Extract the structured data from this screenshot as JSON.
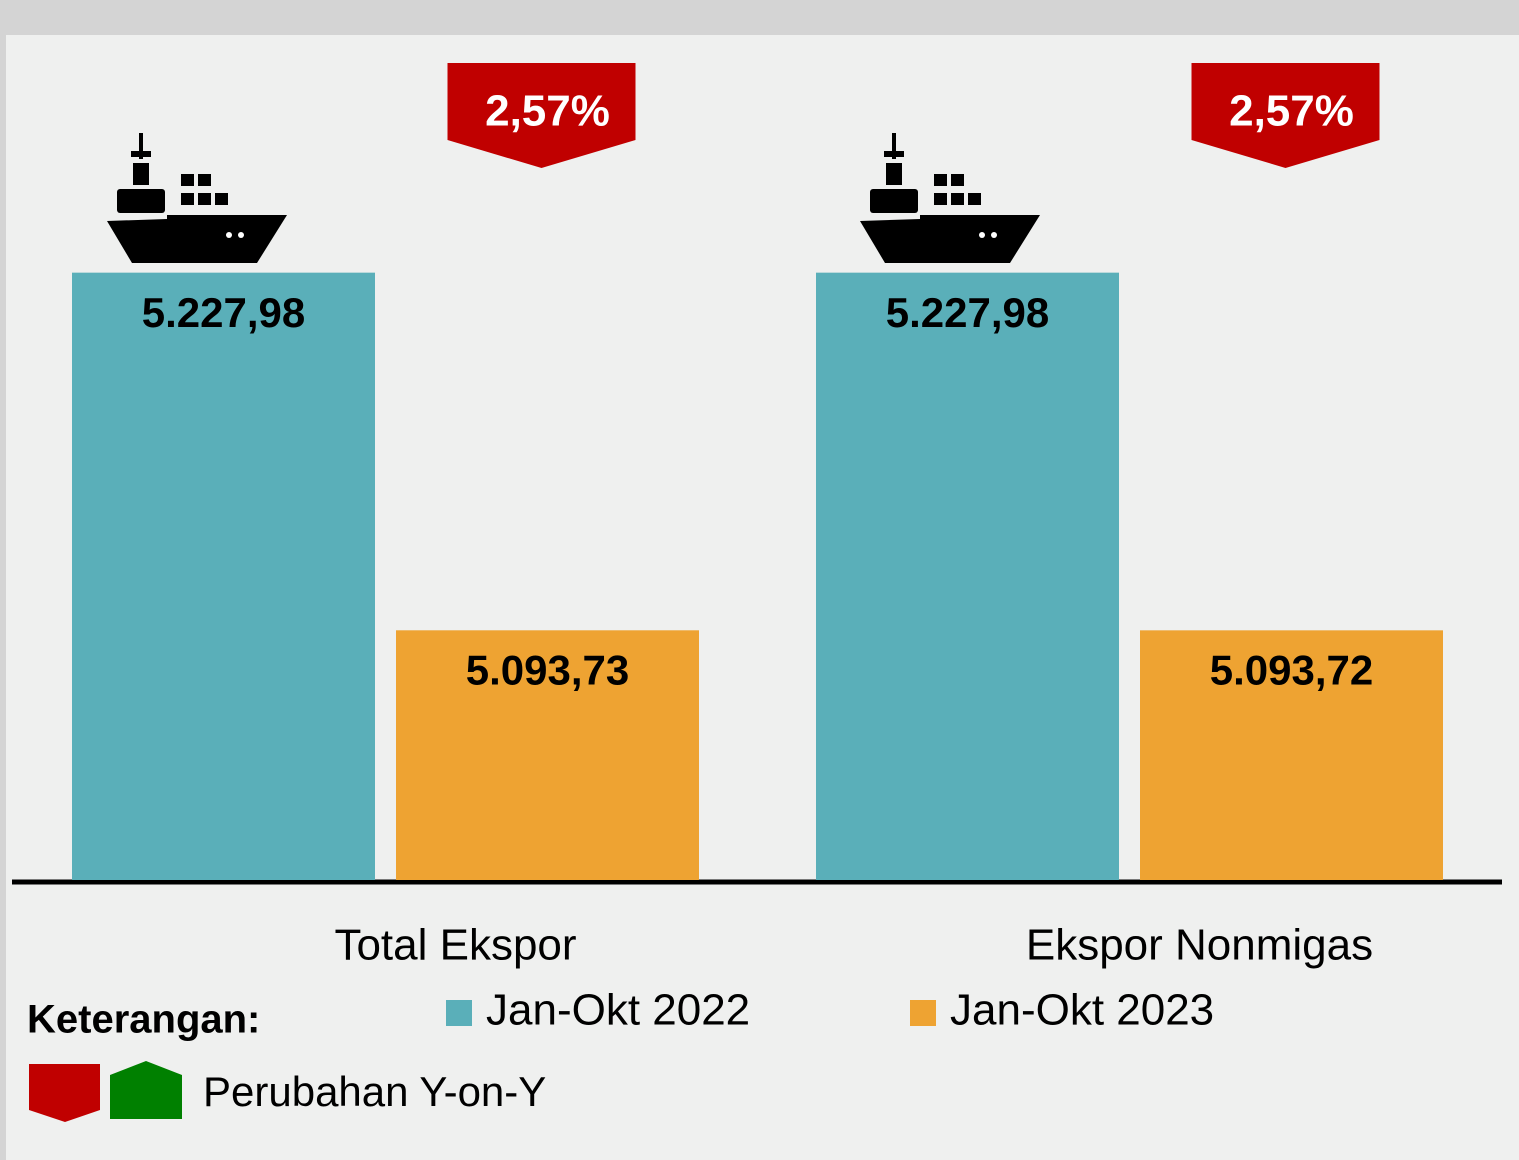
{
  "chart_data": {
    "type": "bar",
    "categories": [
      "Total Ekspor",
      "Ekspor Nonmigas"
    ],
    "series": [
      {
        "name": "Jan-Okt 2022",
        "color": "#5aafb9",
        "values": [
          5227.98,
          5227.98
        ],
        "value_labels": [
          "5.227,98",
          "5.227,98"
        ]
      },
      {
        "name": "Jan-Okt 2023",
        "color": "#eea332",
        "values": [
          5093.73,
          5093.72
        ],
        "value_labels": [
          "5.093,73",
          "5.093,72"
        ]
      }
    ],
    "ylim": [
      5000,
      5250
    ],
    "changes": {
      "values": [
        2.57,
        2.57
      ],
      "value_labels": [
        "2,57%",
        "2,57%"
      ],
      "color": "#c00000"
    },
    "legend_title": "Keterangan:",
    "change_legend": {
      "label": "Perubahan Y-on-Y",
      "colors": [
        "#c00000",
        "#008000"
      ]
    }
  }
}
